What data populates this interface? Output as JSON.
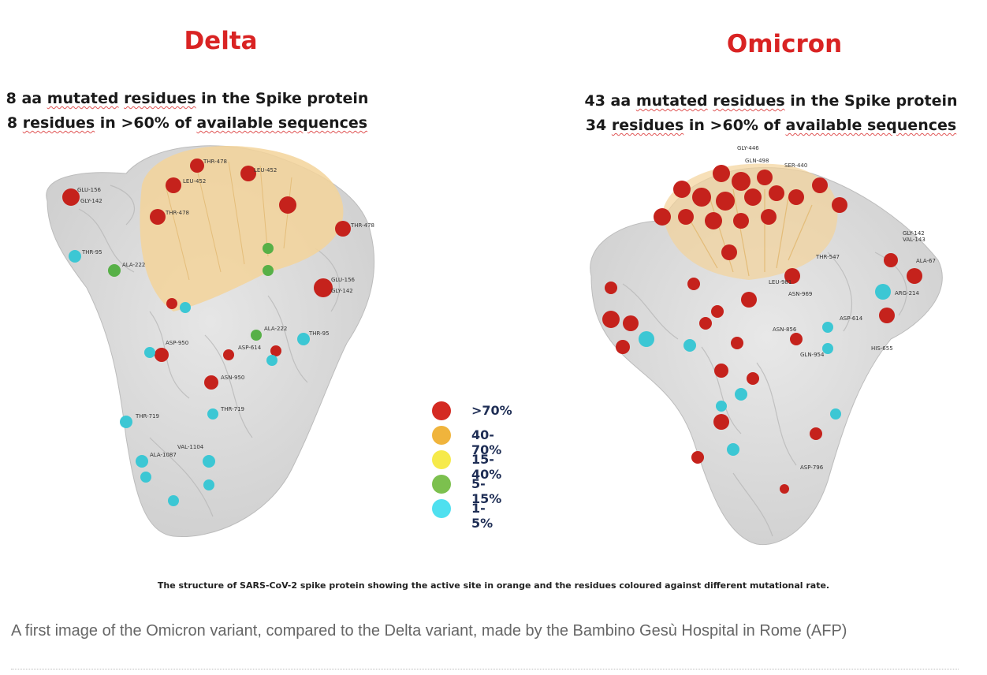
{
  "figure": {
    "left_panel": {
      "title": "Delta",
      "subtitle_line1_prefix": "8 aa ",
      "subtitle_line1_u1": "mutated",
      "subtitle_line1_mid": " ",
      "subtitle_line1_u2": "residues",
      "subtitle_line1_suffix": " in the Spike protein",
      "subtitle_line2_prefix": "8 ",
      "subtitle_line2_u1": "residues",
      "subtitle_line2_mid": " in >60% of ",
      "subtitle_line2_u2": "available sequences",
      "labels": [
        "THR-478",
        "LEU-452",
        "GLU-156",
        "GLY-142",
        "LEU-452",
        "THR-478",
        "THR-95",
        "ALA-222",
        "THR-478",
        "GLU-156",
        "GLY-142",
        "ASP-950",
        "ASP-614",
        "ALA-222",
        "THR-95",
        "ASN-950",
        "THR-719",
        "THR-719",
        "VAL-1104",
        "ALA-1087"
      ]
    },
    "right_panel": {
      "title": "Omicron",
      "subtitle_line1_prefix": "43 aa ",
      "subtitle_line1_u1": "mutated",
      "subtitle_line1_mid": " ",
      "subtitle_line1_u2": "residues",
      "subtitle_line1_suffix": " in the Spike protein",
      "subtitle_line2_prefix": "34 ",
      "subtitle_line2_u1": "residues",
      "subtitle_line2_mid": " in >60% of ",
      "subtitle_line2_u2": "available sequences",
      "labels": [
        "GLY-446",
        "GLN-498",
        "SER-440",
        "THR-547",
        "LEU-981",
        "ASN-969",
        "ASN-856",
        "ASP-614",
        "HIS-655",
        "GLN-954",
        "ARG-214",
        "ALA-67",
        "GLY-142",
        "VAL-143",
        "ASP-796"
      ]
    },
    "legend": [
      {
        "label": ">70%",
        "color": "#d42a22"
      },
      {
        "label": "40-70%",
        "color": "#f0b43c"
      },
      {
        "label": "15-40%",
        "color": "#f6ea4a"
      },
      {
        "label": "5-15%",
        "color": "#7cc04e"
      },
      {
        "label": "1-5%",
        "color": "#4fe0ef"
      }
    ],
    "figure_caption": "The structure of SARS-CoV-2 spike protein showing the active site in orange and the residues coloured against different mutational rate."
  },
  "caption": "A first image of the Omicron variant, compared to the Delta variant, made by the Bambino Gesù Hospital in Rome (AFP)",
  "colors": {
    "title": "#d92323",
    "active_site": "#f3d39a",
    "protein": "#d9d9d9",
    "mutation_high": "#c5221c",
    "mutation_low": "#3cc7d4",
    "mutation_mid": "#57b047"
  }
}
